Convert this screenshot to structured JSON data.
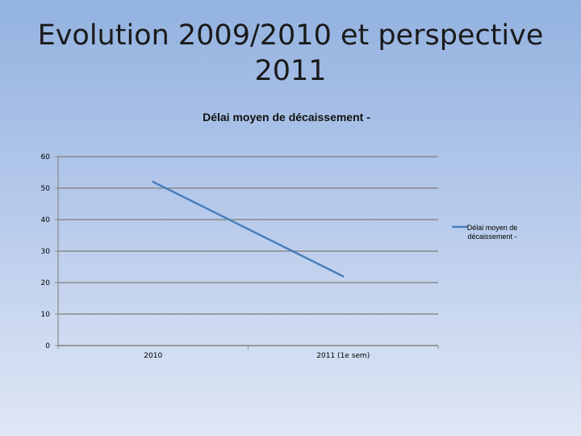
{
  "slide": {
    "title_line1": "Evolution 2009/2010 et perspective",
    "title_line2": "2011"
  },
  "chart_data": {
    "type": "line",
    "title": "Délai moyen de décaissement -",
    "categories": [
      "2010",
      "2011 (1e sem)"
    ],
    "series": [
      {
        "name": "Délai moyen de décaissement -",
        "values": [
          52,
          22
        ],
        "color": "#4a7ebb"
      }
    ],
    "ylim": [
      0,
      60
    ],
    "yticks": [
      0,
      10,
      20,
      30,
      40,
      50,
      60
    ],
    "grid": true,
    "legend": "right",
    "legend_lines": [
      "Délai moyen de",
      "décaissement -"
    ]
  }
}
